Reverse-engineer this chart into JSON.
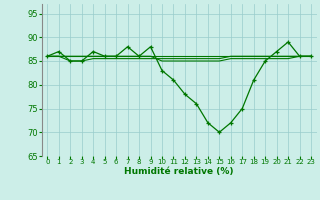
{
  "title": "",
  "xlabel": "Humidité relative (%)",
  "ylabel": "",
  "xlim": [
    -0.5,
    23.5
  ],
  "ylim": [
    65,
    97
  ],
  "yticks": [
    65,
    70,
    75,
    80,
    85,
    90,
    95
  ],
  "xticks": [
    0,
    1,
    2,
    3,
    4,
    5,
    6,
    7,
    8,
    9,
    10,
    11,
    12,
    13,
    14,
    15,
    16,
    17,
    18,
    19,
    20,
    21,
    22,
    23
  ],
  "bg_color": "#cceee8",
  "grid_color": "#99cccc",
  "line_color": "#007700",
  "line1": [
    86,
    87,
    85,
    85,
    87,
    86,
    86,
    88,
    86,
    88,
    83,
    81,
    78,
    76,
    72,
    70,
    72,
    75,
    81,
    85,
    87,
    89,
    86,
    86
  ],
  "line2": [
    86,
    86,
    85,
    85,
    85.5,
    85.5,
    85.5,
    85.5,
    85.5,
    85.5,
    85.5,
    85.5,
    85.5,
    85.5,
    85.5,
    85.5,
    86,
    86,
    86,
    86,
    86,
    86,
    86,
    86
  ],
  "line3": [
    86,
    86,
    86,
    86,
    86,
    86,
    86,
    86,
    86,
    86,
    86,
    86,
    86,
    86,
    86,
    86,
    86,
    86,
    86,
    86,
    86,
    86,
    86,
    86
  ],
  "line4": [
    86,
    86,
    86,
    86,
    86,
    86,
    86,
    86,
    86,
    86,
    85,
    85,
    85,
    85,
    85,
    85,
    85.5,
    85.5,
    85.5,
    85.5,
    85.5,
    85.5,
    86,
    86
  ]
}
